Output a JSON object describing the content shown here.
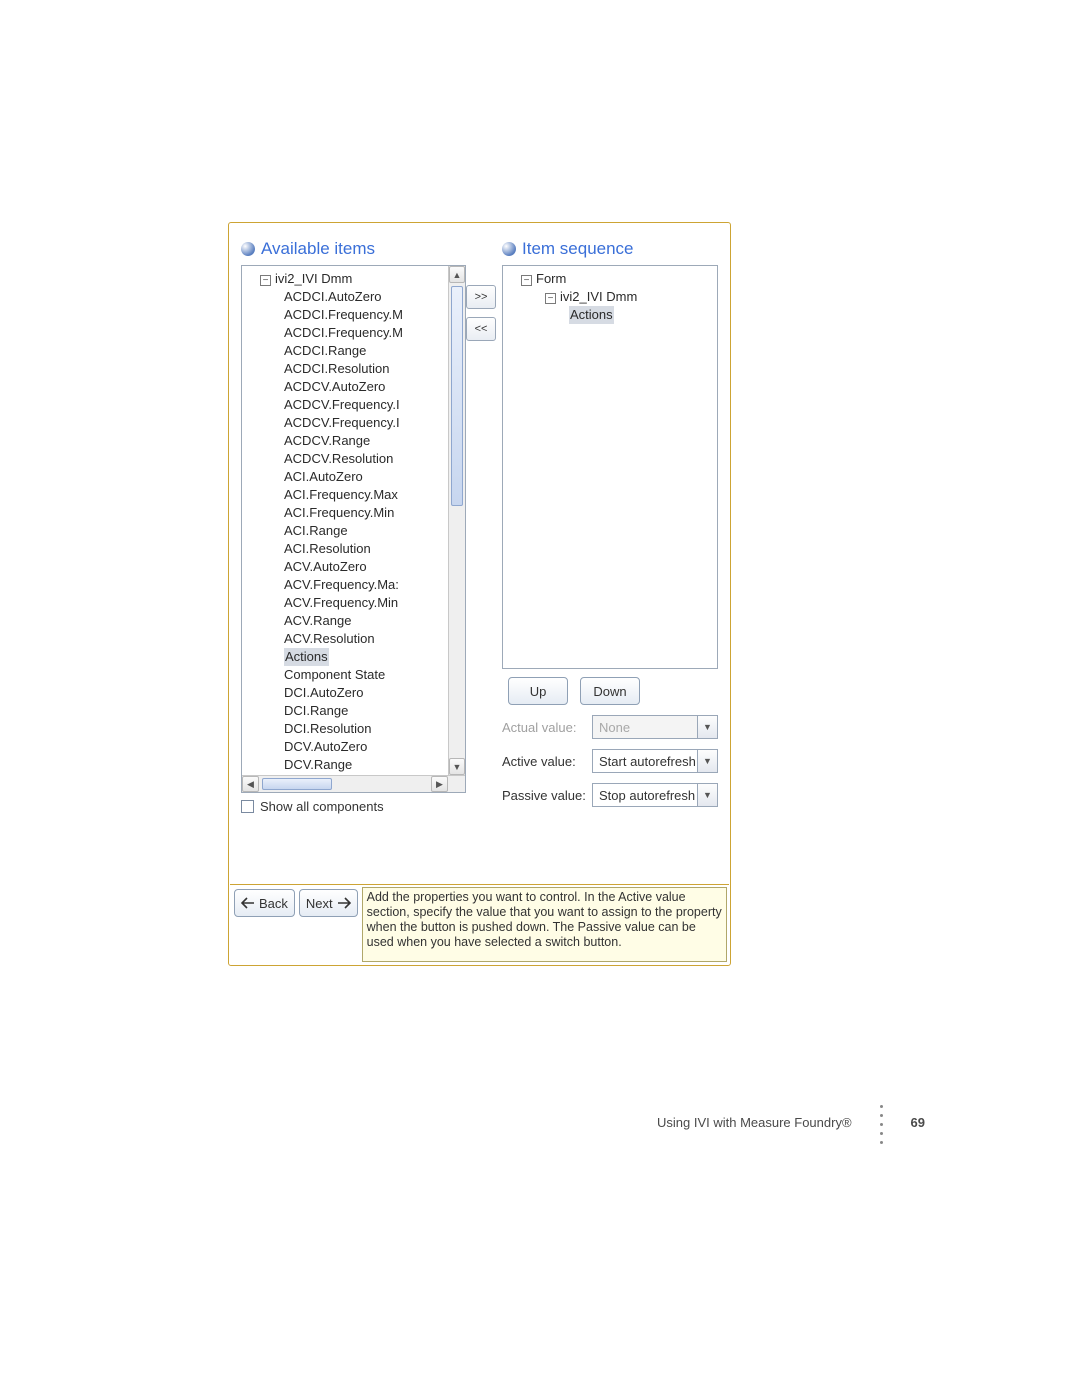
{
  "panels": {
    "available_title": "Available items",
    "sequence_title": "Item sequence"
  },
  "left_tree": {
    "root": "ivi2_IVI Dmm",
    "items": [
      "ACDCI.AutoZero",
      "ACDCI.Frequency.M",
      "ACDCI.Frequency.M",
      "ACDCI.Range",
      "ACDCI.Resolution",
      "ACDCV.AutoZero",
      "ACDCV.Frequency.I",
      "ACDCV.Frequency.I",
      "ACDCV.Range",
      "ACDCV.Resolution",
      "ACI.AutoZero",
      "ACI.Frequency.Max",
      "ACI.Frequency.Min",
      "ACI.Range",
      "ACI.Resolution",
      "ACV.AutoZero",
      "ACV.Frequency.Ma:",
      "ACV.Frequency.Min",
      "ACV.Range",
      "ACV.Resolution",
      "Actions",
      "Component State",
      "DCI.AutoZero",
      "DCI.Range",
      "DCI.Resolution",
      "DCV.AutoZero",
      "DCV.Range"
    ],
    "selected": "Actions"
  },
  "right_tree": {
    "root": "Form",
    "child": "ivi2_IVI Dmm",
    "leaf": "Actions",
    "selected": "Actions"
  },
  "buttons": {
    "add": ">>",
    "remove": "<<",
    "up": "Up",
    "down": "Down",
    "back": "Back",
    "next": "Next"
  },
  "values": {
    "actual_label": "Actual value:",
    "actual_value": "None",
    "active_label": "Active value:",
    "active_value": "Start autorefresh",
    "passive_label": "Passive value:",
    "passive_value": "Stop autorefresh"
  },
  "checkbox": {
    "label": "Show all components"
  },
  "help_text": "Add the properties you want to control. In the Active value section, specify the value that you want to assign to the property when the button is pushed down. The Passive value can be used when you have selected a switch button.",
  "page_footer": {
    "caption": "Using IVI with Measure Foundry®",
    "page": "69"
  },
  "colors": {
    "accent_blue": "#3a6fd8",
    "frame_gold": "#cda434",
    "help_bg": "#fffde6"
  }
}
